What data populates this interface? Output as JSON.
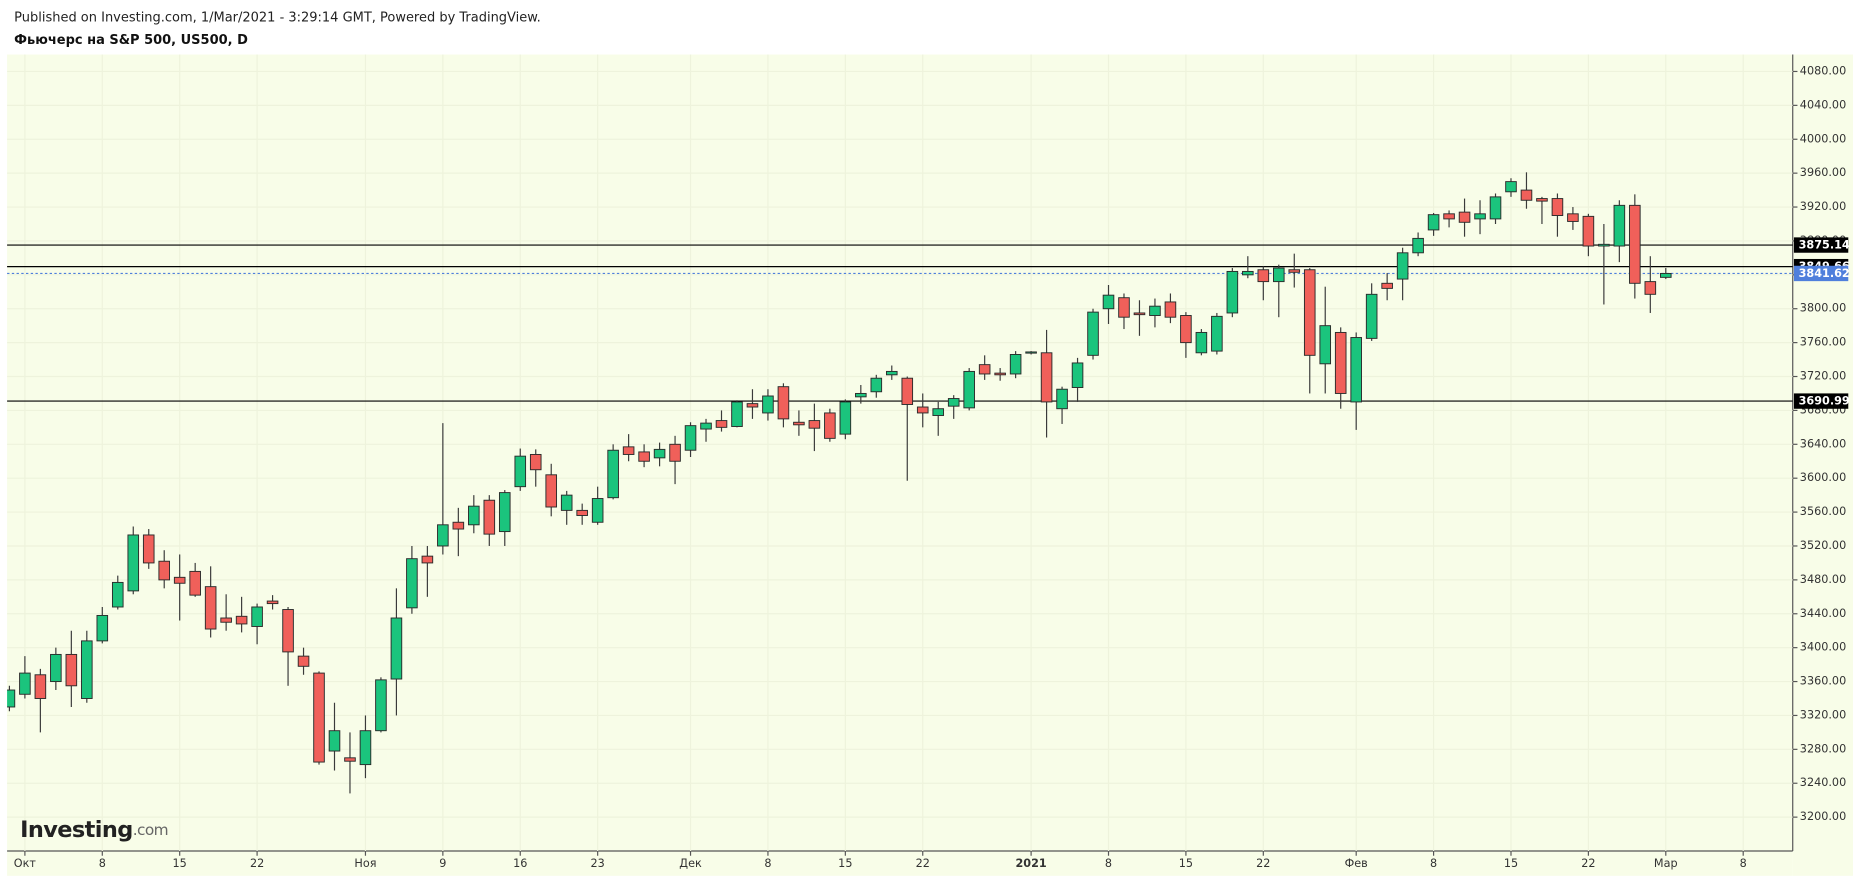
{
  "header": {
    "published": "Published on Investing.com, 1/Mar/2021 - 3:29:14 GMT, Powered by TradingView.",
    "title": "Фьючерс на S&P 500, US500, D"
  },
  "logo": {
    "name": "Investing",
    "suffix": ".com"
  },
  "chart_data": {
    "type": "candlestick",
    "up_color": "#1bc47d",
    "down_color": "#f0605a",
    "grid": true,
    "open": [
      3330,
      3345,
      3368,
      3360,
      3392,
      3340,
      3408,
      3448,
      3467,
      3533,
      3502,
      3483,
      3490,
      3472,
      3435,
      3437,
      3425,
      3455,
      3445,
      3390,
      3370,
      3278,
      3270,
      3262,
      3302,
      3363,
      3447,
      3508,
      3520,
      3548,
      3545,
      3574,
      3537,
      3590,
      3628,
      3604,
      3562,
      3562,
      3548,
      3577,
      3637,
      3631,
      3624,
      3640,
      3633,
      3658,
      3668,
      3661,
      3688,
      3677,
      3708,
      3666,
      3668,
      3677,
      3652,
      3696,
      3702,
      3722,
      3718,
      3684,
      3674,
      3685,
      3683,
      3734,
      3724,
      3723,
      3748,
      3748,
      3682,
      3707,
      3745,
      3800,
      3813,
      3795,
      3792,
      3808,
      3792,
      3748,
      3750,
      3795,
      3840,
      3846,
      3832,
      3846,
      3846,
      3735,
      3772,
      3690,
      3765,
      3830,
      3835,
      3866,
      3893,
      3912,
      3914,
      3906,
      3906,
      3938,
      3940,
      3930,
      3930,
      3912,
      3909,
      3874,
      3874,
      3922,
      3832,
      3837
    ],
    "high": [
      3355,
      3390,
      3375,
      3400,
      3420,
      3420,
      3448,
      3485,
      3543,
      3540,
      3515,
      3510,
      3500,
      3496,
      3463,
      3460,
      3452,
      3462,
      3448,
      3400,
      3372,
      3335,
      3300,
      3320,
      3365,
      3470,
      3520,
      3520,
      3665,
      3565,
      3580,
      3580,
      3586,
      3635,
      3634,
      3617,
      3585,
      3570,
      3590,
      3640,
      3652,
      3640,
      3642,
      3650,
      3666,
      3670,
      3680,
      3692,
      3705,
      3705,
      3712,
      3680,
      3688,
      3682,
      3693,
      3710,
      3722,
      3733,
      3720,
      3700,
      3690,
      3698,
      3730,
      3745,
      3730,
      3750,
      3750,
      3775,
      3708,
      3742,
      3800,
      3828,
      3818,
      3810,
      3812,
      3818,
      3796,
      3776,
      3795,
      3848,
      3862,
      3850,
      3852,
      3865,
      3848,
      3826,
      3778,
      3772,
      3830,
      3842,
      3872,
      3890,
      3913,
      3916,
      3930,
      3928,
      3936,
      3954,
      3961,
      3932,
      3936,
      3920,
      3912,
      3900,
      3928,
      3935,
      3862,
      3848
    ],
    "low": [
      3325,
      3340,
      3300,
      3350,
      3330,
      3335,
      3405,
      3445,
      3463,
      3493,
      3470,
      3432,
      3460,
      3412,
      3420,
      3418,
      3404,
      3445,
      3355,
      3368,
      3262,
      3255,
      3228,
      3246,
      3300,
      3320,
      3440,
      3460,
      3510,
      3508,
      3535,
      3520,
      3520,
      3585,
      3590,
      3555,
      3545,
      3545,
      3545,
      3575,
      3620,
      3613,
      3614,
      3593,
      3625,
      3643,
      3655,
      3660,
      3670,
      3668,
      3660,
      3650,
      3632,
      3643,
      3646,
      3688,
      3695,
      3716,
      3597,
      3660,
      3650,
      3670,
      3680,
      3716,
      3715,
      3718,
      3746,
      3648,
      3664,
      3690,
      3740,
      3782,
      3776,
      3768,
      3778,
      3783,
      3742,
      3745,
      3746,
      3790,
      3836,
      3810,
      3790,
      3825,
      3700,
      3700,
      3682,
      3657,
      3762,
      3810,
      3810,
      3862,
      3886,
      3896,
      3885,
      3888,
      3900,
      3932,
      3918,
      3900,
      3885,
      3893,
      3862,
      3805,
      3855,
      3812,
      3795,
      3835
    ],
    "close": [
      3350,
      3370,
      3340,
      3392,
      3355,
      3408,
      3438,
      3477,
      3533,
      3500,
      3480,
      3476,
      3462,
      3422,
      3430,
      3428,
      3448,
      3452,
      3395,
      3378,
      3265,
      3302,
      3266,
      3302,
      3362,
      3435,
      3505,
      3500,
      3545,
      3540,
      3567,
      3534,
      3583,
      3626,
      3610,
      3566,
      3580,
      3556,
      3576,
      3633,
      3628,
      3620,
      3634,
      3620,
      3662,
      3665,
      3660,
      3690,
      3684,
      3697,
      3670,
      3663,
      3659,
      3647,
      3690,
      3700,
      3718,
      3726,
      3687,
      3677,
      3682,
      3694,
      3726,
      3723,
      3722,
      3746,
      3749,
      3690,
      3705,
      3736,
      3796,
      3816,
      3790,
      3793,
      3803,
      3790,
      3760,
      3772,
      3791,
      3844,
      3844,
      3832,
      3848,
      3843,
      3745,
      3780,
      3700,
      3766,
      3817,
      3824,
      3866,
      3883,
      3911,
      3906,
      3902,
      3912,
      3932,
      3950,
      3928,
      3927,
      3910,
      3903,
      3874,
      3876,
      3922,
      3830,
      3817,
      3841.62
    ],
    "xticks": [
      {
        "value": 1,
        "label": "Окт"
      },
      {
        "value": 6,
        "label": "8"
      },
      {
        "value": 11,
        "label": "15"
      },
      {
        "value": 16,
        "label": "22"
      },
      {
        "value": 23,
        "label": "Ноя"
      },
      {
        "value": 28,
        "label": "9"
      },
      {
        "value": 33,
        "label": "16"
      },
      {
        "value": 38,
        "label": "23"
      },
      {
        "value": 44,
        "label": "Дек"
      },
      {
        "value": 49,
        "label": "8"
      },
      {
        "value": 54,
        "label": "15"
      },
      {
        "value": 59,
        "label": "22"
      },
      {
        "value": 66,
        "label": "2021"
      },
      {
        "value": 71,
        "label": "8"
      },
      {
        "value": 76,
        "label": "15"
      },
      {
        "value": 81,
        "label": "22"
      },
      {
        "value": 87,
        "label": "Фев"
      },
      {
        "value": 92,
        "label": "8"
      },
      {
        "value": 97,
        "label": "15"
      },
      {
        "value": 102,
        "label": "22"
      },
      {
        "value": 107,
        "label": "Мар"
      },
      {
        "value": 112,
        "label": "8"
      }
    ],
    "xlim": [
      -0.15,
      115.2
    ],
    "ylim": [
      3160,
      4100
    ],
    "yticks": [
      {
        "value": 3200,
        "label": "3200.00"
      },
      {
        "value": 3240,
        "label": "3240.00"
      },
      {
        "value": 3280,
        "label": "3280.00"
      },
      {
        "value": 3320,
        "label": "3320.00"
      },
      {
        "value": 3360,
        "label": "3360.00"
      },
      {
        "value": 3400,
        "label": "3400.00"
      },
      {
        "value": 3440,
        "label": "3440.00"
      },
      {
        "value": 3480,
        "label": "3480.00"
      },
      {
        "value": 3520,
        "label": "3520.00"
      },
      {
        "value": 3560,
        "label": "3560.00"
      },
      {
        "value": 3600,
        "label": "3600.00"
      },
      {
        "value": 3640,
        "label": "3640.00"
      },
      {
        "value": 3680,
        "label": "3680.00"
      },
      {
        "value": 3720,
        "label": "3720.00"
      },
      {
        "value": 3760,
        "label": "3760.00"
      },
      {
        "value": 3800,
        "label": "3800.00"
      },
      {
        "value": 3840,
        "label": "3840.00"
      },
      {
        "value": 3880,
        "label": "3880.00"
      },
      {
        "value": 3920,
        "label": "3920.00"
      },
      {
        "value": 3960,
        "label": "3960.00"
      },
      {
        "value": 4000,
        "label": "4000.00"
      },
      {
        "value": 4040,
        "label": "4040.00"
      },
      {
        "value": 4080,
        "label": "4080.00"
      }
    ],
    "price_lines": [
      3875.14,
      3849.66,
      3690.99
    ],
    "last_price": 3841.62,
    "line_color": "#000000",
    "last_price_color": "#4f7fdc"
  }
}
